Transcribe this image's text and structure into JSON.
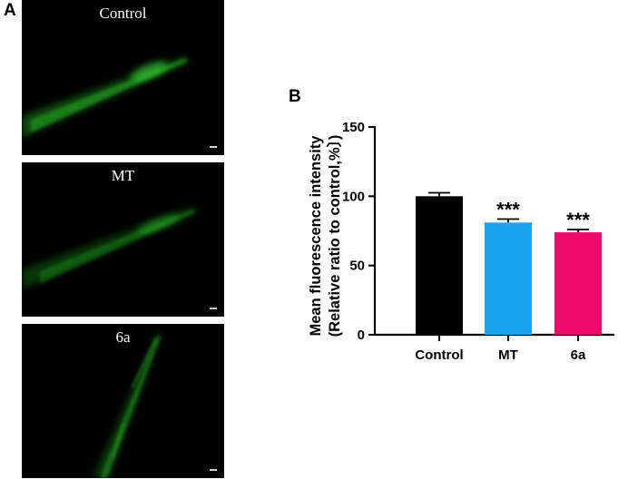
{
  "figure": {
    "panel_a_label": "A",
    "panel_b_label": "B"
  },
  "images": [
    {
      "label": "Control",
      "glow": "bright"
    },
    {
      "label": "MT",
      "glow": "medium"
    },
    {
      "label": "6a",
      "glow": "dim"
    }
  ],
  "chart_data": {
    "type": "bar",
    "categories": [
      "Control",
      "MT",
      "6a"
    ],
    "values": [
      100,
      81,
      74
    ],
    "errors": [
      2.5,
      2.5,
      2.0
    ],
    "significance": [
      "",
      "***",
      "***"
    ],
    "colors": [
      "#000000",
      "#1aa3f0",
      "#ee0a6b"
    ],
    "ylabel_line1": "Mean fluorescence intensity",
    "ylabel_line2": "(Relative ratio to control,%〕)",
    "ylim": [
      0,
      150
    ],
    "yticks": [
      0,
      50,
      100,
      150
    ],
    "xlabel": "",
    "grid": false
  }
}
